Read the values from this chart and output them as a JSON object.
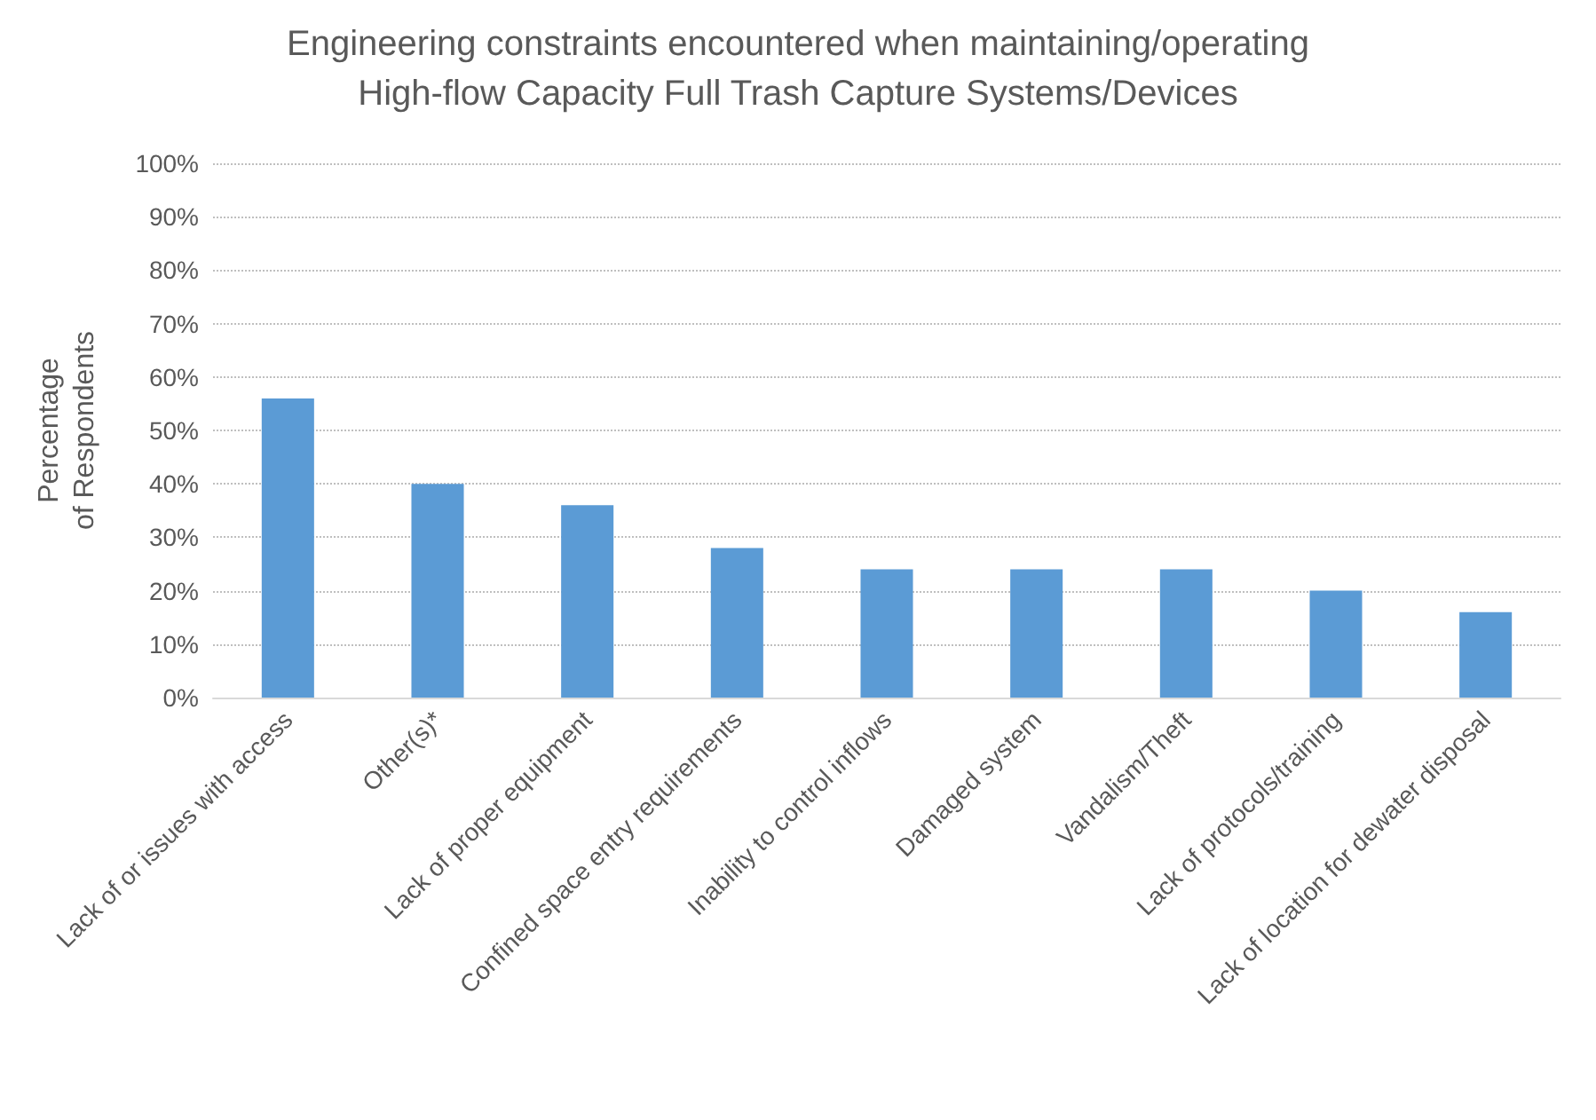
{
  "chart_data": {
    "type": "bar",
    "title": "Engineering constraints encountered when maintaining/operating\nHigh-flow Capacity Full Trash Capture Systems/Devices",
    "ylabel": "Percentage\nof Respondents",
    "categories": [
      "Lack of or issues with access",
      "Other(s)*",
      "Lack of proper equipment",
      "Confined space entry requirements",
      "Inability to control inflows",
      "Damaged system",
      "Vandalism/Theft",
      "Lack of protocols/training",
      "Lack of location for dewater disposal"
    ],
    "values": [
      56,
      40,
      36,
      28,
      24,
      24,
      24,
      20,
      16
    ],
    "color": "#5b9bd5",
    "ylim": [
      0,
      100
    ],
    "yticks": [
      {
        "value": 0,
        "label": "0%"
      },
      {
        "value": 10,
        "label": "10%"
      },
      {
        "value": 20,
        "label": "20%"
      },
      {
        "value": 30,
        "label": "30%"
      },
      {
        "value": 40,
        "label": "40%"
      },
      {
        "value": 50,
        "label": "50%"
      },
      {
        "value": 60,
        "label": "60%"
      },
      {
        "value": 70,
        "label": "70%"
      },
      {
        "value": 80,
        "label": "80%"
      },
      {
        "value": 90,
        "label": "90%"
      },
      {
        "value": 100,
        "label": "100%"
      }
    ],
    "grid": true
  }
}
